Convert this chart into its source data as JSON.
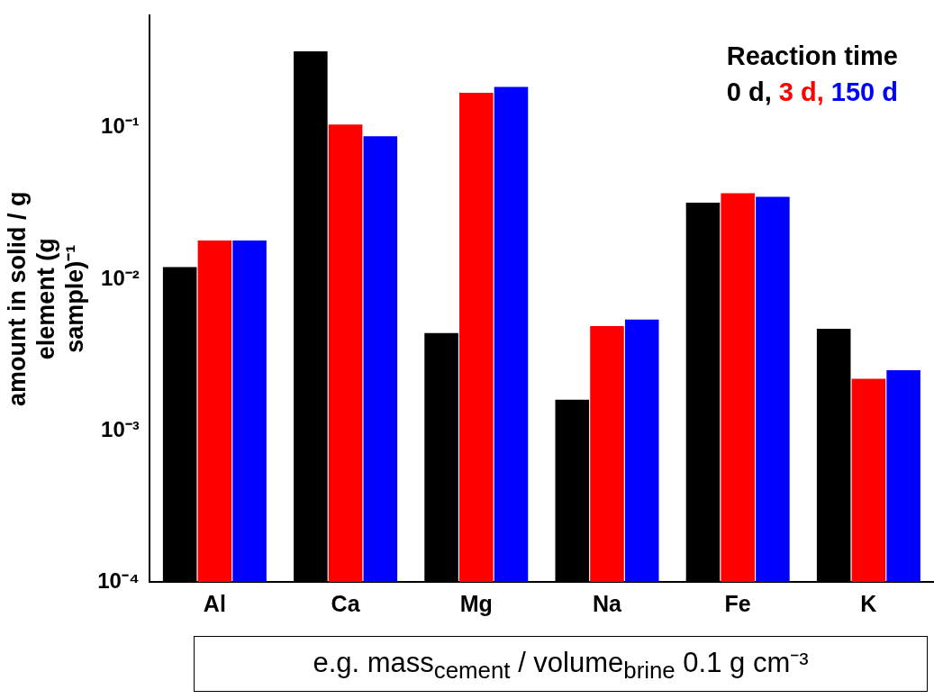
{
  "chart_data": {
    "type": "bar",
    "categories": [
      "Al",
      "Ca",
      "Mg",
      "Na",
      "Fe",
      "K"
    ],
    "ylabel": "amount in solid / g element (g sample)⁻¹",
    "legend_title": "Reaction time",
    "legend": "top right",
    "series": [
      {
        "name": "0 d,",
        "color": "#000000",
        "values": [
          0.012,
          0.32,
          0.0044,
          0.0016,
          0.032,
          0.0047
        ]
      },
      {
        "name": "3 d,",
        "color": "#ff0000",
        "values": [
          0.018,
          0.105,
          0.17,
          0.0049,
          0.037,
          0.0022
        ]
      },
      {
        "name": "150 d",
        "color": "#0000ff",
        "values": [
          0.018,
          0.088,
          0.186,
          0.0054,
          0.035,
          0.0025
        ]
      }
    ],
    "log": "y",
    "ylim": [
      0.0001,
      0.55
    ],
    "yticks": [
      {
        "value": 0.0001,
        "label": "10⁻⁴"
      },
      {
        "value": 0.001,
        "label": "10⁻³"
      },
      {
        "value": 0.01,
        "label": "10⁻²"
      },
      {
        "value": 0.1,
        "label": "10⁻¹"
      }
    ],
    "grid": false,
    "annotations": [
      "e.g. mass$_{cement}$ / volume$_{brine}$ 0.1 g cm⁻³"
    ]
  }
}
